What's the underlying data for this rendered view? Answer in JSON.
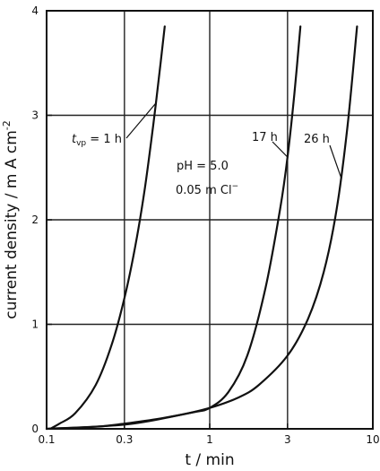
{
  "chart_data": {
    "type": "line",
    "title": "",
    "xlabel": "t / min",
    "ylabel": "current density / m A cm",
    "ylabel_sup": "-2",
    "x_scale": "log",
    "xlim": [
      0.1,
      10
    ],
    "ylim": [
      0,
      4
    ],
    "x_ticks": [
      0.1,
      0.3,
      1,
      3,
      10
    ],
    "x_tick_labels": [
      "0.1",
      "0.3",
      "1",
      "3",
      "10"
    ],
    "x_grid": [
      0.3,
      1,
      3
    ],
    "y_ticks": [
      0,
      1,
      2,
      3,
      4
    ],
    "y_tick_labels": [
      "0",
      "1",
      "2",
      "3",
      "4"
    ],
    "grid": true,
    "series": [
      {
        "name": "t_vp = 1 h",
        "points": [
          [
            0.105,
            0.0
          ],
          [
            0.12,
            0.05
          ],
          [
            0.15,
            0.15
          ],
          [
            0.2,
            0.42
          ],
          [
            0.25,
            0.8
          ],
          [
            0.3,
            1.25
          ],
          [
            0.35,
            1.75
          ],
          [
            0.4,
            2.3
          ],
          [
            0.45,
            2.9
          ],
          [
            0.5,
            3.5
          ],
          [
            0.53,
            3.85
          ]
        ]
      },
      {
        "name": "17 h",
        "points": [
          [
            0.1,
            0.0
          ],
          [
            0.2,
            0.02
          ],
          [
            0.3,
            0.05
          ],
          [
            0.5,
            0.1
          ],
          [
            0.8,
            0.16
          ],
          [
            1.0,
            0.2
          ],
          [
            1.3,
            0.35
          ],
          [
            1.7,
            0.7
          ],
          [
            2.2,
            1.35
          ],
          [
            2.7,
            2.1
          ],
          [
            3.0,
            2.6
          ],
          [
            3.3,
            3.2
          ],
          [
            3.6,
            3.85
          ]
        ]
      },
      {
        "name": "26 h",
        "points": [
          [
            0.1,
            0.0
          ],
          [
            0.3,
            0.04
          ],
          [
            0.6,
            0.12
          ],
          [
            1.0,
            0.2
          ],
          [
            1.5,
            0.3
          ],
          [
            2.0,
            0.42
          ],
          [
            3.0,
            0.7
          ],
          [
            4.0,
            1.05
          ],
          [
            5.0,
            1.5
          ],
          [
            6.0,
            2.1
          ],
          [
            7.0,
            2.9
          ],
          [
            8.0,
            3.85
          ]
        ]
      }
    ],
    "annotations": [
      {
        "text": "t",
        "sub": "vp",
        "after": " = 1 h",
        "series": 0
      },
      {
        "text": "17 h",
        "series": 1
      },
      {
        "text": "26 h",
        "series": 2
      },
      {
        "text": "pH = 5.0"
      },
      {
        "text": "0.05 m Cl",
        "sup": "−"
      }
    ]
  }
}
